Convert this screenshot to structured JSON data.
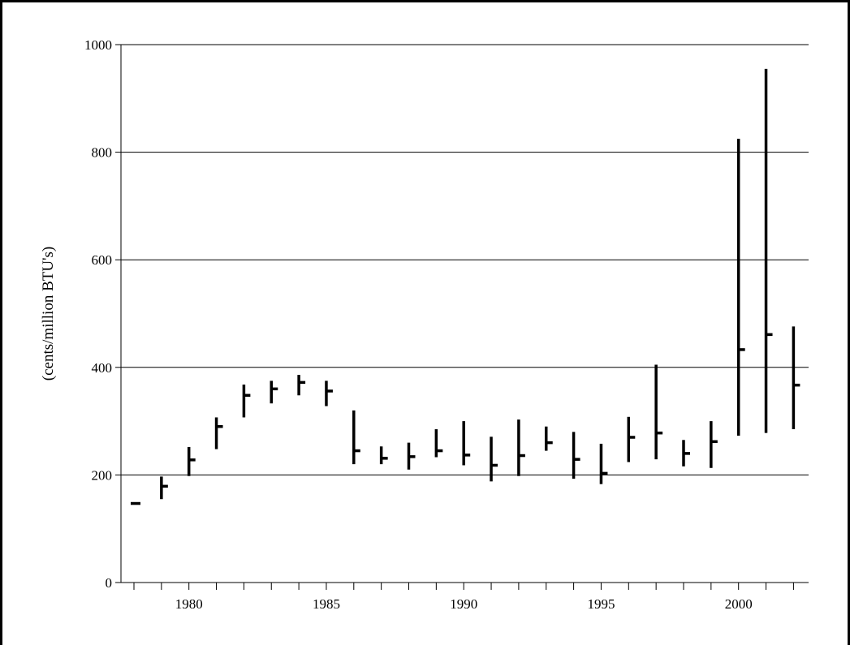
{
  "header_fragment": "",
  "chart_data": {
    "type": "high-low-close",
    "title": "",
    "xlabel": "",
    "ylabel": "(cents/million BTU's)",
    "ylim": [
      0,
      1000
    ],
    "yticks": [
      0,
      200,
      400,
      600,
      800,
      1000
    ],
    "xticks_labeled": [
      1980,
      1985,
      1990,
      1995,
      2000
    ],
    "grid": "horizontal",
    "line_color": "#000000",
    "series": [
      {
        "x": [
          1978,
          1979,
          1980,
          1981,
          1982,
          1983,
          1984,
          1985,
          1986,
          1987,
          1988,
          1989,
          1990,
          1991,
          1992,
          1993,
          1994,
          1995,
          1996,
          1997,
          1998,
          1999,
          2000,
          2001,
          2002
        ],
        "high": [
          147,
          197,
          252,
          307,
          368,
          375,
          386,
          375,
          320,
          253,
          260,
          285,
          300,
          271,
          303,
          290,
          280,
          258,
          308,
          405,
          265,
          300,
          825,
          955,
          476
        ],
        "low": [
          147,
          155,
          198,
          248,
          307,
          333,
          348,
          328,
          220,
          220,
          210,
          233,
          218,
          188,
          198,
          245,
          193,
          183,
          224,
          229,
          216,
          213,
          273,
          278,
          285
        ],
        "close": [
          147,
          179,
          228,
          290,
          348,
          360,
          372,
          356,
          245,
          231,
          234,
          245,
          237,
          218,
          236,
          260,
          229,
          203,
          270,
          278,
          240,
          262,
          433,
          461,
          367
        ]
      }
    ]
  }
}
